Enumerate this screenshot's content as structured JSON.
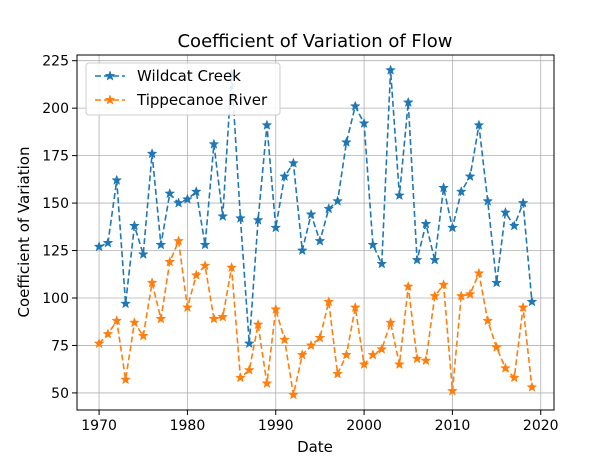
{
  "chart_data": {
    "type": "line",
    "title": "Coefficient of Variation of Flow",
    "xlabel": "Date",
    "ylabel": "Coefficient of Variation",
    "xlim": [
      1967.5,
      2021.5
    ],
    "ylim": [
      41,
      228
    ],
    "x_ticks": [
      1970,
      1980,
      1990,
      2000,
      2010,
      2020
    ],
    "y_ticks": [
      50,
      75,
      100,
      125,
      150,
      175,
      200,
      225
    ],
    "grid": true,
    "legend_position": "upper-left",
    "x": [
      1970,
      1971,
      1972,
      1973,
      1974,
      1975,
      1976,
      1977,
      1978,
      1979,
      1980,
      1981,
      1982,
      1983,
      1984,
      1985,
      1986,
      1987,
      1988,
      1989,
      1990,
      1991,
      1992,
      1993,
      1994,
      1995,
      1996,
      1997,
      1998,
      1999,
      2000,
      2001,
      2002,
      2003,
      2004,
      2005,
      2006,
      2007,
      2008,
      2009,
      2010,
      2011,
      2012,
      2013,
      2014,
      2015,
      2016,
      2017,
      2018,
      2019
    ],
    "series": [
      {
        "name": "Wildcat Creek",
        "color": "#1f77b4",
        "marker": "star",
        "line_style": "dashed",
        "values": [
          127,
          129,
          162,
          97,
          138,
          123,
          176,
          128,
          155,
          150,
          152,
          156,
          128,
          181,
          143,
          218,
          142,
          76,
          141,
          191,
          137,
          164,
          171,
          125,
          144,
          130,
          147,
          151,
          182,
          201,
          192,
          128,
          118,
          220,
          154,
          203,
          120,
          139,
          120,
          158,
          137,
          156,
          164,
          191,
          151,
          108,
          145,
          138,
          150,
          98
        ]
      },
      {
        "name": "Tippecanoe River",
        "color": "#ff7f0e",
        "marker": "star",
        "line_style": "dashed",
        "values": [
          76,
          81,
          88,
          57,
          87,
          80,
          108,
          89,
          119,
          130,
          95,
          112,
          117,
          89,
          90,
          116,
          58,
          62,
          86,
          55,
          94,
          78,
          49,
          70,
          75,
          79,
          98,
          60,
          70,
          95,
          65,
          70,
          73,
          87,
          65,
          106,
          68,
          67,
          101,
          107,
          51,
          101,
          102,
          113,
          88,
          74,
          63,
          58,
          95,
          53
        ]
      }
    ]
  }
}
